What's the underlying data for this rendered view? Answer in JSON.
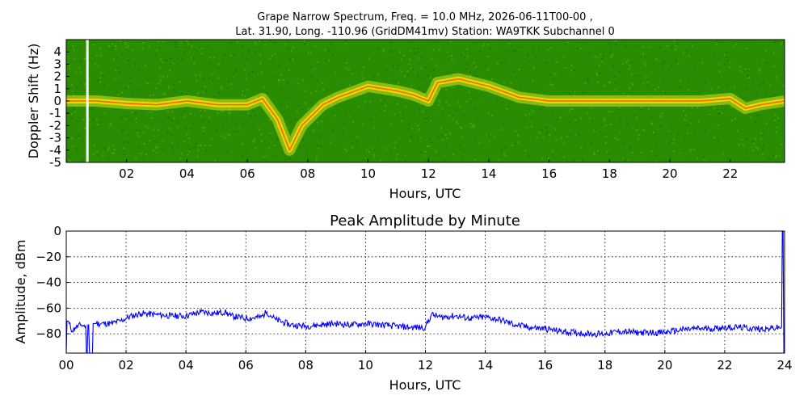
{
  "header": {
    "title_line1": "Grape Narrow Spectrum, Freq. = 10.0 MHz, 2026-06-11T00-00 ,",
    "title_line2": "Lat.  31.90, Long. -110.96 (GridDM41mv) Station: WA9TKK Subchannel 0"
  },
  "chart_data": [
    {
      "type": "heatmap",
      "title": "",
      "xlabel": "Hours, UTC",
      "ylabel": "Doppler Shift (Hz)",
      "xlim": [
        0,
        23.8
      ],
      "ylim": [
        -5,
        5
      ],
      "x_ticks": [
        2,
        4,
        6,
        8,
        10,
        12,
        14,
        16,
        18,
        20,
        22
      ],
      "x_tick_labels": [
        "02",
        "04",
        "06",
        "08",
        "10",
        "12",
        "14",
        "16",
        "18",
        "20",
        "22"
      ],
      "y_ticks": [
        4,
        3,
        2,
        1,
        0,
        -1,
        -2,
        -3,
        -4,
        -5
      ],
      "y_tick_labels": [
        "4",
        "3",
        "2",
        "1",
        "0",
        "-1",
        "-2",
        "-3",
        "-4",
        "-5"
      ],
      "colormap": [
        "#2a8c00",
        "#58b000",
        "#d8e020",
        "#f4e000",
        "#ff4000"
      ],
      "gap_hours": [
        0.7
      ],
      "doppler_trace": [
        [
          0.0,
          0.0
        ],
        [
          1.0,
          0.0
        ],
        [
          2.0,
          -0.2
        ],
        [
          3.0,
          -0.3
        ],
        [
          4.0,
          0.0
        ],
        [
          5.0,
          -0.3
        ],
        [
          6.0,
          -0.3
        ],
        [
          6.5,
          0.2
        ],
        [
          7.0,
          -1.5
        ],
        [
          7.4,
          -4.0
        ],
        [
          7.8,
          -2.0
        ],
        [
          8.5,
          -0.3
        ],
        [
          9.0,
          0.3
        ],
        [
          10.0,
          1.2
        ],
        [
          11.0,
          0.8
        ],
        [
          11.5,
          0.5
        ],
        [
          12.0,
          0.0
        ],
        [
          12.3,
          1.5
        ],
        [
          13.0,
          1.8
        ],
        [
          14.0,
          1.2
        ],
        [
          15.0,
          0.3
        ],
        [
          16.0,
          0.0
        ],
        [
          18.0,
          0.0
        ],
        [
          20.0,
          0.0
        ],
        [
          21.0,
          0.0
        ],
        [
          22.0,
          0.2
        ],
        [
          22.5,
          -0.6
        ],
        [
          23.0,
          -0.3
        ],
        [
          23.8,
          0.0
        ]
      ]
    },
    {
      "type": "line",
      "title": "Peak Amplitude by Minute",
      "xlabel": "Hours, UTC",
      "ylabel": "Amplitude, dBm",
      "xlim": [
        0,
        24
      ],
      "ylim": [
        -95,
        0
      ],
      "x_ticks": [
        0,
        2,
        4,
        6,
        8,
        10,
        12,
        14,
        16,
        18,
        20,
        22,
        24
      ],
      "x_tick_labels": [
        "00",
        "02",
        "04",
        "06",
        "08",
        "10",
        "12",
        "14",
        "16",
        "18",
        "20",
        "22",
        "24"
      ],
      "y_ticks": [
        0,
        -20,
        -40,
        -60,
        -80
      ],
      "y_tick_labels": [
        "0",
        "−20",
        "−40",
        "−60",
        "−80"
      ],
      "grid": true,
      "line_color": "#0000ff",
      "series": [
        {
          "x": [
            0.0,
            0.05,
            0.1,
            0.2,
            0.3,
            0.5,
            0.65,
            0.7,
            0.75,
            0.8,
            1.0,
            1.5,
            1.8,
            2.0,
            2.2,
            2.5,
            3.0,
            3.5,
            4.0,
            4.5,
            5.0,
            5.3,
            5.5,
            6.0,
            6.5,
            6.7,
            7.0,
            7.5,
            8.0,
            8.5,
            9.0,
            9.5,
            10.0,
            10.5,
            11.0,
            11.5,
            12.0,
            12.2,
            12.5,
            13.0,
            13.5,
            14.0,
            14.5,
            15.0,
            15.5,
            16.0,
            16.5,
            17.0,
            17.5,
            18.0,
            18.5,
            19.0,
            19.5,
            20.0,
            20.5,
            21.0,
            21.5,
            22.0,
            22.5,
            23.0,
            23.5,
            23.9,
            23.95,
            24.0
          ],
          "values": [
            -95,
            -70,
            -72,
            -78,
            -75,
            -73,
            -74,
            -95,
            -73,
            -95,
            -72,
            -72,
            -70,
            -68,
            -66,
            -64,
            -65,
            -66,
            -66,
            -63,
            -64,
            -63,
            -66,
            -68,
            -67,
            -63,
            -69,
            -73,
            -74,
            -73,
            -72,
            -73,
            -72,
            -73,
            -74,
            -75,
            -75,
            -65,
            -67,
            -66,
            -68,
            -67,
            -69,
            -73,
            -75,
            -76,
            -78,
            -79,
            -80,
            -80,
            -78,
            -79,
            -79,
            -79,
            -77,
            -76,
            -76,
            -75,
            -75,
            -76,
            -76,
            -75,
            0,
            -95
          ]
        }
      ]
    }
  ]
}
